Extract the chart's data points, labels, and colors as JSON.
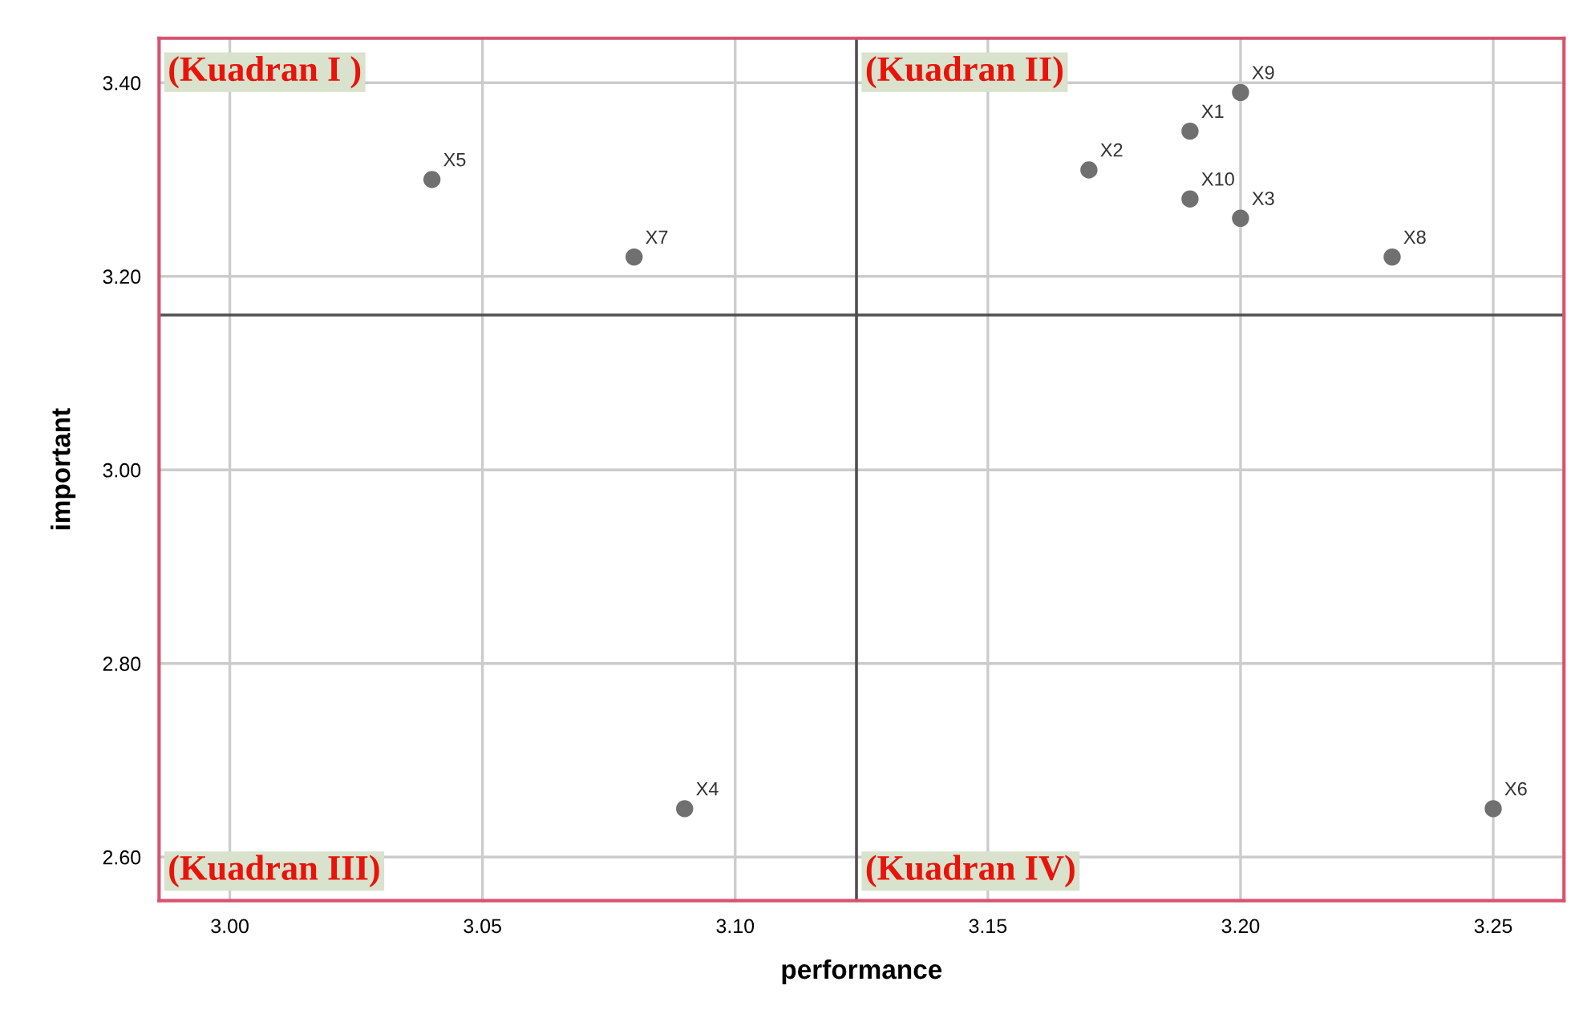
{
  "chart_data": {
    "type": "scatter",
    "xlabel": "performance",
    "ylabel": "important",
    "series": [
      {
        "color": "#707070",
        "x": [
          3.19,
          3.17,
          3.2,
          3.09,
          3.04,
          3.25,
          3.08,
          3.23,
          3.2,
          3.19
        ],
        "values": [
          3.35,
          3.31,
          3.26,
          2.65,
          3.3,
          2.65,
          3.22,
          3.22,
          3.39,
          3.28
        ]
      }
    ],
    "marker": "circle",
    "grid": true,
    "xlim": [
      2.986,
      3.264
    ],
    "xticks": [
      {
        "value": 3.0,
        "label": "3.00"
      },
      3.05,
      {
        "value": 3.1,
        "label": "3.10"
      },
      3.15,
      {
        "value": 3.2,
        "label": "3.20"
      },
      3.25
    ],
    "ylim": [
      2.555,
      3.446
    ],
    "yticks": [
      {
        "value": 2.6,
        "label": "2.60"
      },
      {
        "value": 2.8,
        "label": "2.80"
      },
      {
        "value": 3.0,
        "label": "3.00"
      },
      {
        "value": 3.2,
        "label": "3.20"
      },
      {
        "value": 3.4,
        "label": "3.40"
      }
    ],
    "ref_lines": [
      {
        "axis": "x",
        "value": 3.124,
        "color": "#505050"
      },
      {
        "axis": "y",
        "value": 3.16,
        "color": "#505050"
      }
    ],
    "annotations": [
      "(Kuadran I )",
      "(Kuadran II)",
      "(Kuadran III)",
      "(Kuadran IV)",
      {
        "text": "X1",
        "x": 3.19,
        "y": 3.35
      },
      {
        "text": "X2",
        "x": 3.17,
        "y": 3.31
      },
      {
        "text": "X3",
        "x": 3.2,
        "y": 3.26
      },
      {
        "text": "X4",
        "x": 3.09,
        "y": 2.65
      },
      {
        "text": "X5",
        "x": 3.04,
        "y": 3.3
      },
      {
        "text": "X6",
        "x": 3.25,
        "y": 2.65
      },
      {
        "text": "X7",
        "x": 3.08,
        "y": 3.22
      },
      {
        "text": "X8",
        "x": 3.23,
        "y": 3.22
      },
      {
        "text": "X9",
        "x": 3.2,
        "y": 3.39
      },
      {
        "text": "X10",
        "x": 3.19,
        "y": 3.28
      }
    ]
  }
}
